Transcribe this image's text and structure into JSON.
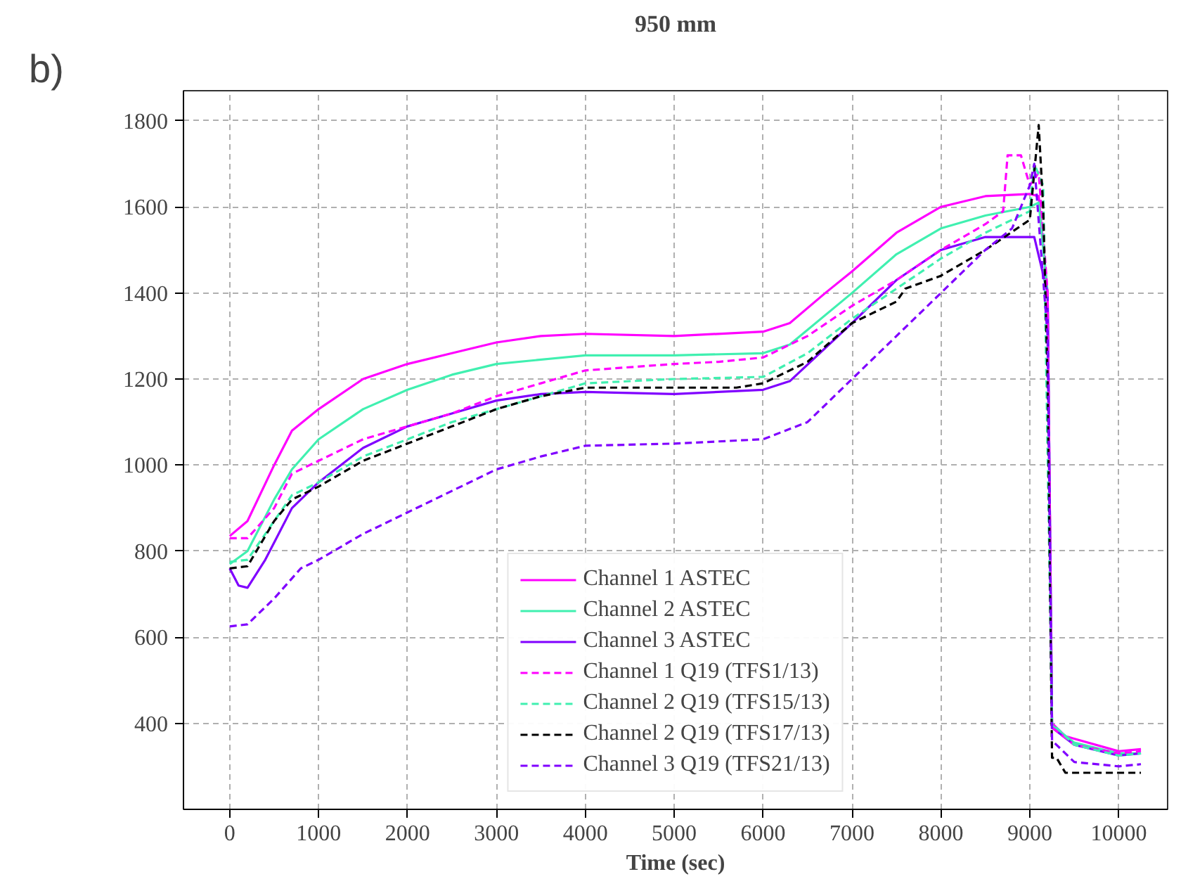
{
  "chart_data": {
    "type": "line",
    "title": "950 mm",
    "xlabel": "Time (sec)",
    "annotations": [
      "b)"
    ],
    "xlim": [
      -520,
      10550
    ],
    "ylim": [
      200,
      1870
    ],
    "xticks": [
      0,
      1000,
      2000,
      3000,
      4000,
      5000,
      6000,
      7000,
      8000,
      9000,
      10000
    ],
    "yticks": [
      400,
      600,
      800,
      1000,
      1200,
      1400,
      1600,
      1800
    ],
    "grid": true,
    "legend": "bottom",
    "marker": "none",
    "series": [
      {
        "name": "Channel 1 ASTEC",
        "color": "#ff00ff",
        "line_style": "solid",
        "x": [
          0,
          200,
          500,
          700,
          1000,
          1500,
          2000,
          2500,
          3000,
          3500,
          4000,
          5000,
          6000,
          6300,
          6700,
          7000,
          7500,
          8000,
          8500,
          9000,
          9100,
          9200,
          9250,
          9400,
          10000,
          10250
        ],
        "values": [
          835,
          870,
          1000,
          1080,
          1130,
          1200,
          1235,
          1260,
          1285,
          1300,
          1305,
          1300,
          1310,
          1330,
          1400,
          1450,
          1540,
          1600,
          1625,
          1630,
          1625,
          1400,
          400,
          370,
          335,
          340
        ]
      },
      {
        "name": "Channel 2 ASTEC",
        "color": "#40f0b0",
        "line_style": "solid",
        "x": [
          0,
          200,
          500,
          700,
          1000,
          1500,
          2000,
          2500,
          3000,
          4000,
          5000,
          6000,
          6300,
          7000,
          7500,
          8000,
          8500,
          9000,
          9100,
          9200,
          9250,
          9500,
          10000,
          10250
        ],
        "values": [
          770,
          800,
          920,
          990,
          1060,
          1130,
          1175,
          1210,
          1235,
          1255,
          1255,
          1260,
          1280,
          1400,
          1490,
          1550,
          1580,
          1600,
          1610,
          1400,
          395,
          355,
          330,
          330
        ]
      },
      {
        "name": "Channel 3 ASTEC",
        "color": "#8000ff",
        "line_style": "solid",
        "x": [
          0,
          100,
          200,
          400,
          700,
          1000,
          1500,
          2000,
          2500,
          3000,
          3500,
          4000,
          5000,
          6000,
          6300,
          7000,
          7500,
          8000,
          8500,
          9050,
          9200,
          9250,
          9500,
          10000,
          10250
        ],
        "values": [
          760,
          720,
          715,
          780,
          900,
          960,
          1040,
          1090,
          1120,
          1150,
          1165,
          1170,
          1165,
          1175,
          1195,
          1330,
          1430,
          1500,
          1530,
          1530,
          1400,
          390,
          350,
          325,
          330
        ]
      },
      {
        "name": "Channel 1 Q19 (TFS1/13)",
        "color": "#ff00ff",
        "line_style": "dashed",
        "x": [
          0,
          200,
          500,
          700,
          1000,
          1500,
          2000,
          2500,
          3000,
          3500,
          4000,
          5000,
          5500,
          6000,
          6500,
          7000,
          7500,
          8000,
          8500,
          8700,
          8750,
          8900,
          9000,
          9100,
          9200,
          9250,
          9500,
          10000,
          10250
        ],
        "values": [
          830,
          830,
          900,
          980,
          1010,
          1060,
          1090,
          1120,
          1160,
          1190,
          1220,
          1235,
          1240,
          1250,
          1300,
          1370,
          1430,
          1500,
          1560,
          1590,
          1720,
          1720,
          1650,
          1680,
          1400,
          390,
          350,
          330,
          335
        ]
      },
      {
        "name": "Channel 2 Q19 (TFS15/13)",
        "color": "#40f0b0",
        "line_style": "dashed",
        "x": [
          0,
          200,
          500,
          700,
          1000,
          1500,
          2000,
          2500,
          3000,
          3500,
          4000,
          5000,
          6000,
          6500,
          7000,
          7500,
          8000,
          8500,
          9000,
          9050,
          9150,
          9250,
          9500,
          10000,
          10250
        ],
        "values": [
          775,
          780,
          870,
          930,
          960,
          1020,
          1060,
          1100,
          1130,
          1160,
          1190,
          1200,
          1205,
          1260,
          1340,
          1410,
          1480,
          1540,
          1590,
          1700,
          1650,
          400,
          350,
          325,
          330
        ]
      },
      {
        "name": "Channel 2 Q19 (TFS17/13)",
        "color": "#000000",
        "line_style": "dashed",
        "x": [
          0,
          200,
          500,
          700,
          1000,
          1500,
          2000,
          2500,
          3000,
          3500,
          4000,
          5000,
          5700,
          6000,
          6500,
          7000,
          7500,
          7600,
          8000,
          8500,
          9000,
          9100,
          9150,
          9200,
          9250,
          9300,
          9400,
          10250
        ],
        "values": [
          760,
          765,
          870,
          920,
          950,
          1010,
          1050,
          1090,
          1130,
          1160,
          1180,
          1180,
          1180,
          1190,
          1240,
          1330,
          1380,
          1410,
          1440,
          1500,
          1570,
          1790,
          1600,
          1200,
          320,
          320,
          285,
          285
        ]
      },
      {
        "name": "Channel 3 Q19 (TFS21/13)",
        "color": "#8000ff",
        "line_style": "dashed",
        "x": [
          0,
          200,
          500,
          800,
          1000,
          1500,
          2000,
          2500,
          3000,
          3500,
          4000,
          5000,
          6000,
          6500,
          7000,
          7500,
          8000,
          8500,
          8800,
          9000,
          9050,
          9200,
          9250,
          9500,
          10000,
          10250
        ],
        "values": [
          625,
          630,
          690,
          760,
          780,
          840,
          890,
          940,
          990,
          1020,
          1045,
          1050,
          1060,
          1100,
          1200,
          1300,
          1400,
          1500,
          1550,
          1650,
          1700,
          1300,
          360,
          310,
          300,
          305
        ]
      }
    ]
  }
}
